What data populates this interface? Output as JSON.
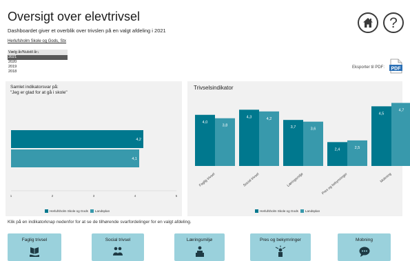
{
  "header": {
    "title": "Oversigt over elevtrivsel",
    "subtitle": "Dashboardet giver et overblik over trivslen på en valgt afdeling i 2021",
    "department": "Herlufsholm Skole og Gods, Stx"
  },
  "year_selector": {
    "header": "Vælg år/Nulstil år",
    "selected": "2021",
    "years": [
      "2021",
      "2020",
      "2019",
      "2018"
    ]
  },
  "top_icons": {
    "home": "home-icon",
    "help": "help-icon",
    "help_glyph": "?"
  },
  "export": {
    "label": "Eksporter til PDF:",
    "icon_text": "PDF"
  },
  "colors": {
    "primary": "#00788e",
    "secondary": "#3899ac",
    "panel": "#f1f1f1",
    "nav_button": "#9ad1dc"
  },
  "left_chart": {
    "title_line1": "Samlet indikatorsvar på:",
    "title_line2": "\"Jeg er glad for at gå i skole\"",
    "legend": [
      "Herlufsholm Skole og Gods",
      "Landsplan"
    ]
  },
  "right_chart": {
    "title": "Trivselsindikator",
    "legend": [
      "Herlufsholm Skole og Gods",
      "Landsplan"
    ]
  },
  "chart_data": [
    {
      "type": "bar",
      "orientation": "horizontal",
      "title": "Samlet indikatorsvar på: \"Jeg er glad for at gå i skole\"",
      "categories": [
        ""
      ],
      "series": [
        {
          "name": "Herlufsholm Skole og Gods",
          "values": [
            4.2
          ],
          "labels": [
            "4,2"
          ]
        },
        {
          "name": "Landsplan",
          "values": [
            4.1
          ],
          "labels": [
            "4,1"
          ]
        }
      ],
      "xlim": [
        1,
        5
      ],
      "ticks": [
        "1",
        "2",
        "3",
        "4",
        "5"
      ],
      "grid": false,
      "legend": "bottom"
    },
    {
      "type": "bar",
      "title": "Trivselsindikator",
      "categories": [
        "Faglig trivsel",
        "Social trivsel",
        "Læringsmiljø",
        "Pres og bekymringer",
        "Mobning"
      ],
      "series": [
        {
          "name": "Herlufsholm Skole og Gods",
          "values": [
            4.0,
            4.3,
            3.7,
            2.4,
            4.5
          ],
          "labels": [
            "4,0",
            "4,3",
            "3,7",
            "2,4",
            "4,5"
          ]
        },
        {
          "name": "Landsplan",
          "values": [
            3.8,
            4.2,
            3.6,
            2.5,
            4.7
          ],
          "labels": [
            "3,8",
            "4,2",
            "3,6",
            "2,5",
            "4,7"
          ]
        }
      ],
      "ylim": [
        1,
        5
      ],
      "grid": false,
      "legend": "bottom"
    }
  ],
  "instruction": "Klik på en indikatorknap nedenfor for at se de tilhørende svarfordelinger for en valgt afdeling.",
  "nav_buttons": [
    {
      "label": "Faglig trivsel",
      "icon": "book-hand-icon"
    },
    {
      "label": "Social trivsel",
      "icon": "people-icon"
    },
    {
      "label": "Læringsmiljø",
      "icon": "teacher-icon"
    },
    {
      "label": "Pres og bekymringer",
      "icon": "pressure-icon"
    },
    {
      "label": "Mobning",
      "icon": "speech-bubble-icon"
    }
  ]
}
